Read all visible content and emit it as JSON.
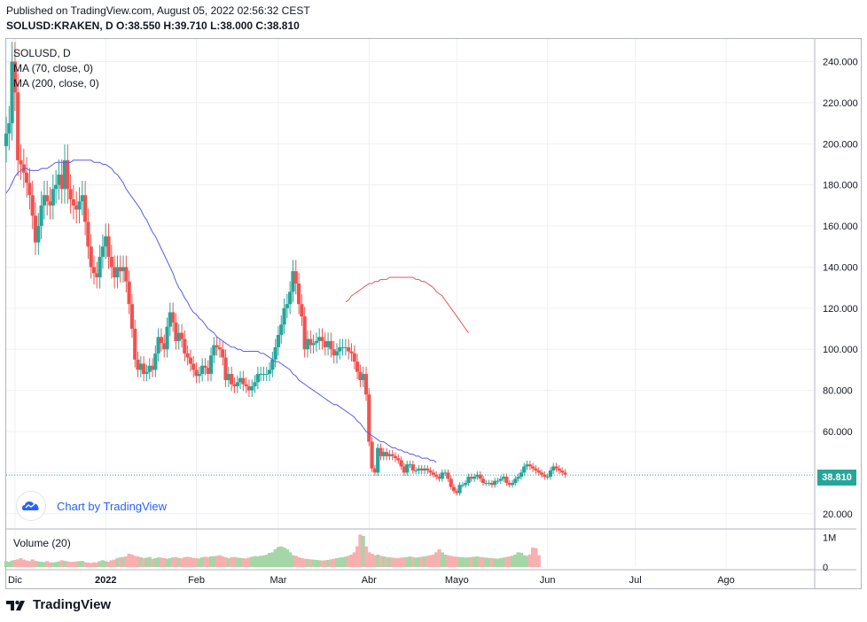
{
  "header": {
    "published": "Published on TradingView.com, August 05, 2022 02:56:32 CEST",
    "symbol_line": "SOLUSD:KRAKEN, D  O:38.550  H:39.710  L:38.000  C:38.810"
  },
  "legend": {
    "symbol": "SOLUSD, D",
    "ma70": "MA (70, close, 0)",
    "ma200": "MA (200, close, 0)",
    "volume": "Volume (20)"
  },
  "badge": {
    "text": "Chart by TradingView",
    "icon": "tradingview-cloud-icon"
  },
  "last_price": {
    "label": "38.810",
    "color": "#26a69a"
  },
  "footer": {
    "brand": "TradingView",
    "icon": "tradingview-logo-icon"
  },
  "colors": {
    "up": "#26a69a",
    "down": "#ef5350",
    "ma70": "#5b5ce6",
    "ma200": "#ef5350",
    "vol_up": "#a5d6a7",
    "vol_down": "#f7b0b0",
    "grid": "#eef0f3"
  },
  "chart_data": {
    "type": "candlestick",
    "title": "SOLUSD, D",
    "y_axis": {
      "ticks": [
        20,
        40,
        60,
        80,
        100,
        120,
        140,
        160,
        180,
        200,
        220,
        240
      ],
      "tick_labels": [
        "20.000",
        "40.000",
        "60.000",
        "80.000",
        "100.000",
        "120.000",
        "140.000",
        "160.000",
        "180.000",
        "200.000",
        "220.000",
        "240.000"
      ],
      "range": [
        13,
        251
      ]
    },
    "volume_axis": {
      "tick_labels": [
        "1M",
        "0"
      ],
      "range": [
        0,
        1200000
      ]
    },
    "x_axis": {
      "tick_labels": [
        "Dic",
        "2022",
        "Feb",
        "Mar",
        "Abr",
        "Mayo",
        "Jun",
        "Jul",
        "Ago"
      ],
      "tick_dates": [
        "2021-12-01",
        "2022-01-01",
        "2022-02-01",
        "2022-03-01",
        "2022-04-01",
        "2022-05-01",
        "2022-06-01",
        "2022-07-01",
        "2022-08-01"
      ],
      "range": [
        "2021-11-28",
        "2022-08-31"
      ]
    },
    "close_series": {
      "start_date": "2021-11-28",
      "values": [
        205,
        210,
        240,
        225,
        192,
        190,
        186,
        181,
        175,
        165,
        152,
        160,
        170,
        175,
        172,
        170,
        178,
        180,
        185,
        178,
        192,
        178,
        173,
        170,
        168,
        172,
        175,
        162,
        150,
        140,
        137,
        135,
        145,
        150,
        155,
        145,
        140,
        135,
        140,
        138,
        140,
        133,
        122,
        110,
        95,
        90,
        93,
        88,
        89,
        92,
        90,
        98,
        106,
        103,
        100,
        111,
        118,
        113,
        104,
        108,
        105,
        98,
        96,
        93,
        90,
        87,
        88,
        92,
        91,
        88,
        97,
        102,
        101,
        100,
        96,
        85,
        88,
        83,
        82,
        84,
        86,
        83,
        82,
        80,
        82,
        84,
        88,
        88,
        88,
        88,
        90,
        95,
        101,
        107,
        112,
        120,
        122,
        128,
        138,
        132,
        122,
        116,
        100,
        105,
        102,
        103,
        104,
        106,
        104,
        101,
        104,
        100,
        97,
        99,
        101,
        101,
        101,
        99,
        98,
        94,
        89,
        85,
        88,
        78,
        55,
        42,
        40,
        52,
        48,
        50,
        48,
        49,
        48,
        47,
        46,
        43,
        40,
        44,
        44,
        41,
        41,
        42,
        41,
        42,
        41,
        40,
        39,
        38,
        37,
        40,
        40,
        37,
        33,
        31,
        30,
        34,
        34,
        35,
        38,
        37,
        38,
        39,
        37,
        35,
        35,
        35,
        34,
        36,
        36,
        37,
        38,
        35,
        34,
        35,
        37,
        38,
        40,
        43,
        44,
        43,
        42,
        41,
        40,
        39,
        38,
        38,
        41,
        43,
        42,
        41,
        40,
        39
      ]
    },
    "ma70": {
      "start_date": "2021-11-28",
      "values": [
        176,
        178,
        181,
        184,
        186,
        187,
        188,
        188,
        187,
        187,
        187,
        187,
        188,
        188,
        188,
        189,
        190,
        191,
        191,
        191,
        191,
        191,
        191,
        192,
        192,
        192,
        192,
        192,
        192,
        192,
        191,
        191,
        191,
        190,
        190,
        189,
        188,
        186,
        185,
        183,
        181,
        178,
        176,
        174,
        172,
        170,
        168,
        165,
        163,
        160,
        157,
        155,
        152,
        149,
        146,
        143,
        140,
        137,
        133,
        130,
        128,
        125,
        123,
        120,
        118,
        117,
        115,
        114,
        112,
        110,
        109,
        108,
        106,
        105,
        104,
        103,
        102,
        101,
        101,
        100,
        100,
        99,
        99,
        99,
        99,
        99,
        99,
        98,
        98,
        97,
        96,
        95,
        94,
        94,
        93,
        92,
        91,
        90,
        88,
        87,
        85,
        84,
        83,
        82,
        81,
        80,
        79,
        78,
        77,
        76,
        75,
        74,
        73,
        73,
        72,
        71,
        70,
        69,
        68,
        67,
        65,
        64,
        62,
        60,
        59,
        58,
        57,
        56,
        55,
        55,
        54,
        53,
        52,
        52,
        51,
        51,
        50,
        50,
        49,
        49,
        48,
        48,
        47,
        47,
        47,
        46,
        46,
        45
      ]
    },
    "ma200": {
      "start_date": "2022-03-24",
      "values": [
        123,
        124,
        126,
        127,
        128,
        129,
        130,
        131,
        132,
        132,
        133,
        133,
        134,
        134,
        134,
        135,
        135,
        135,
        135,
        135,
        135,
        135,
        135,
        135,
        134,
        134,
        133,
        133,
        132,
        131,
        130,
        128,
        127,
        126,
        124,
        122,
        120,
        118,
        116,
        114,
        112,
        110,
        108
      ]
    },
    "volume": {
      "start_date": "2021-11-28",
      "values": [
        200,
        180,
        220,
        240,
        260,
        300,
        250,
        220,
        200,
        260,
        210,
        190,
        180,
        170,
        200,
        160,
        150,
        170,
        190,
        230,
        210,
        190,
        170,
        180,
        190,
        200,
        210,
        160,
        150,
        140,
        160,
        150,
        200,
        230,
        200,
        180,
        230,
        250,
        300,
        330,
        340,
        360,
        450,
        420,
        380,
        360,
        330,
        300,
        320,
        340,
        280,
        300,
        330,
        320,
        300,
        280,
        300,
        330,
        340,
        310,
        300,
        330,
        350,
        330,
        310,
        300,
        290,
        330,
        350,
        330,
        360,
        370,
        380,
        400,
        360,
        330,
        300,
        330,
        340,
        320,
        310,
        300,
        290,
        320,
        350,
        370,
        360,
        380,
        390,
        420,
        480,
        500,
        600,
        680,
        700,
        660,
        600,
        500,
        400,
        380,
        330,
        300,
        280,
        270,
        260,
        250,
        240,
        230,
        220,
        230,
        240,
        260,
        280,
        300,
        320,
        330,
        350,
        380,
        420,
        500,
        700,
        1100,
        1050,
        700,
        500,
        450,
        400,
        420,
        380,
        360,
        340,
        330,
        320,
        310,
        300,
        320,
        330,
        340,
        360,
        340,
        320,
        330,
        350,
        360,
        380,
        400,
        420,
        500,
        600,
        500,
        420,
        400,
        380,
        360,
        350,
        340,
        330,
        320,
        330,
        340,
        350,
        360,
        340,
        330,
        320,
        310,
        300,
        290,
        280,
        300,
        320,
        340,
        360,
        380,
        420,
        500,
        480,
        400,
        380,
        420,
        660,
        640,
        400
      ]
    }
  }
}
